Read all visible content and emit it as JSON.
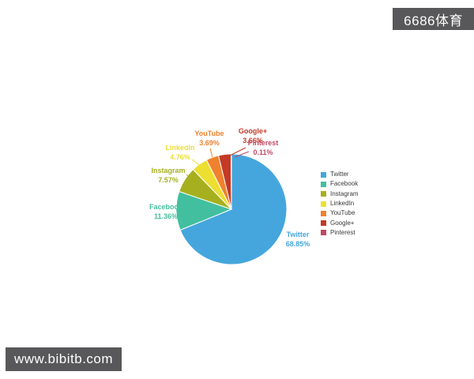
{
  "watermark_top": {
    "label": "6686体育",
    "bg": "#58585a",
    "text_color": "#ffffff"
  },
  "watermark_bottom": {
    "label": "www.bibitb.com",
    "bg": "#58585a",
    "text_color": "#ffffff"
  },
  "chart_data": {
    "type": "pie",
    "title": "",
    "categories": [
      "Twitter",
      "Facebook",
      "Instagram",
      "LinkedIn",
      "YouTube",
      "Google+",
      "Pinterest"
    ],
    "values": [
      68.85,
      11.36,
      7.57,
      4.76,
      3.69,
      3.66,
      0.11
    ],
    "display_labels": [
      "Twitter 68.85%",
      "Facebook 11.36%",
      "Instagram 7.57%",
      "LinkedIn 4.76%",
      "YouTube 3.69%",
      "Google+ 3.66%",
      "Pinterest 0.11%"
    ],
    "colors": [
      "#45a6dd",
      "#42bf9e",
      "#a6b01f",
      "#ecdf32",
      "#f0812e",
      "#c33a26",
      "#c04a66"
    ],
    "legend_position": "right",
    "legend_entries": [
      "Twitter",
      "Facebook",
      "Instagram",
      "LinkedIn",
      "YouTube",
      "Google+",
      "Pinterest"
    ],
    "start_angle_deg": 0,
    "direction": "clockwise"
  }
}
